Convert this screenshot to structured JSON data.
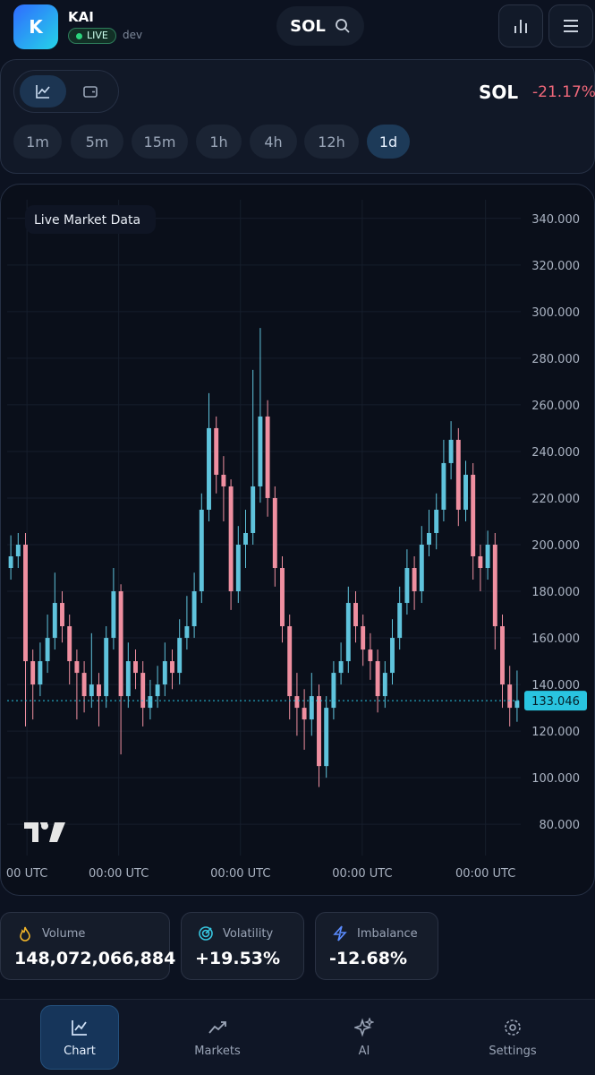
{
  "header": {
    "logo": "K",
    "app_name": "KAI",
    "badge": "LIVE",
    "env": "dev",
    "symbol": "SOL"
  },
  "toolbar": {
    "ticker": "SOL",
    "change": "-21.17%",
    "timeframes": [
      "1m",
      "5m",
      "15m",
      "1h",
      "4h",
      "12h",
      "1d"
    ],
    "active_timeframe": "1d"
  },
  "chart_data": {
    "type": "candlestick",
    "annotation": "Live Market Data",
    "up_color": "#5fc3dc",
    "down_color": "#ef8fa0",
    "last_price_color": "#29c4e0",
    "x": [
      0,
      1,
      2,
      3,
      4,
      5,
      6,
      7,
      8,
      9,
      10,
      11,
      12,
      13,
      14,
      15,
      16,
      17,
      18,
      19,
      20,
      21,
      22,
      23,
      24,
      25,
      26,
      27,
      28,
      29,
      30,
      31,
      32,
      33,
      34,
      35,
      36,
      37,
      38,
      39,
      40,
      41,
      42,
      43,
      44,
      45,
      46,
      47,
      48,
      49,
      50,
      51,
      52,
      53,
      54,
      55,
      56,
      57,
      58,
      59,
      60,
      61,
      62,
      63,
      64,
      65,
      66,
      67,
      68,
      69
    ],
    "open": [
      190,
      195,
      200,
      150,
      140,
      150,
      160,
      175,
      165,
      150,
      145,
      135,
      140,
      135,
      160,
      180,
      135,
      150,
      145,
      130,
      135,
      140,
      150,
      145,
      160,
      165,
      180,
      215,
      250,
      230,
      225,
      180,
      200,
      205,
      225,
      255,
      220,
      190,
      165,
      135,
      130,
      125,
      135,
      105,
      130,
      145,
      150,
      175,
      165,
      155,
      150,
      135,
      145,
      160,
      175,
      190,
      180,
      200,
      205,
      215,
      235,
      245,
      215,
      230,
      195,
      190,
      200,
      165,
      140,
      130
    ],
    "high": [
      204,
      205,
      205,
      155,
      158,
      170,
      188,
      180,
      170,
      155,
      150,
      162,
      145,
      165,
      190,
      183,
      158,
      155,
      150,
      142,
      148,
      158,
      155,
      168,
      178,
      188,
      222,
      265,
      255,
      238,
      228,
      208,
      215,
      275,
      293,
      262,
      225,
      195,
      170,
      145,
      138,
      145,
      140,
      135,
      150,
      158,
      182,
      180,
      170,
      162,
      155,
      150,
      168,
      182,
      198,
      195,
      208,
      215,
      222,
      245,
      253,
      250,
      236,
      235,
      200,
      206,
      205,
      170,
      148,
      146
    ],
    "low": [
      185,
      190,
      122,
      125,
      135,
      145,
      155,
      158,
      140,
      125,
      128,
      130,
      122,
      130,
      155,
      110,
      130,
      138,
      122,
      125,
      130,
      135,
      138,
      140,
      155,
      160,
      175,
      210,
      222,
      210,
      172,
      175,
      190,
      200,
      218,
      212,
      182,
      158,
      125,
      118,
      112,
      118,
      96,
      100,
      125,
      140,
      145,
      158,
      148,
      142,
      128,
      130,
      140,
      155,
      170,
      172,
      175,
      195,
      198,
      210,
      228,
      208,
      210,
      185,
      180,
      185,
      155,
      130,
      122,
      124
    ],
    "close": [
      195,
      200,
      150,
      140,
      150,
      160,
      175,
      165,
      150,
      145,
      135,
      140,
      135,
      160,
      180,
      135,
      150,
      145,
      130,
      135,
      140,
      150,
      145,
      160,
      165,
      180,
      215,
      250,
      230,
      225,
      180,
      200,
      205,
      225,
      255,
      220,
      190,
      165,
      135,
      130,
      125,
      135,
      105,
      130,
      145,
      150,
      175,
      165,
      155,
      150,
      135,
      145,
      160,
      175,
      190,
      180,
      200,
      205,
      215,
      235,
      245,
      215,
      230,
      195,
      190,
      200,
      165,
      140,
      130,
      133
    ],
    "last_price": 133.046,
    "xlim": [
      -0.5,
      69.5
    ],
    "ylim": [
      52,
      348
    ],
    "xticks": [
      {
        "value": 2.2,
        "label": "00 UTC"
      },
      {
        "value": 14.7,
        "label": "00:00 UTC"
      },
      {
        "value": 31.3,
        "label": "00:00 UTC"
      },
      {
        "value": 47.9,
        "label": "00:00 UTC"
      },
      {
        "value": 64.7,
        "label": "00:00 UTC"
      }
    ],
    "yticks": [
      {
        "value": 80,
        "label": "80.000"
      },
      {
        "value": 100,
        "label": "100.000"
      },
      {
        "value": 120,
        "label": "120.000"
      },
      {
        "value": 140,
        "label": "140.000"
      },
      {
        "value": 160,
        "label": "160.000"
      },
      {
        "value": 180,
        "label": "180.000"
      },
      {
        "value": 200,
        "label": "200.000"
      },
      {
        "value": 220,
        "label": "220.000"
      },
      {
        "value": 240,
        "label": "240.000"
      },
      {
        "value": 260,
        "label": "260.000"
      },
      {
        "value": 280,
        "label": "280.000"
      },
      {
        "value": 300,
        "label": "300.000"
      },
      {
        "value": 320,
        "label": "320.000"
      },
      {
        "value": 340,
        "label": "340.000"
      }
    ],
    "grid": true
  },
  "stats": [
    {
      "label": "Volume",
      "value": "148,072,066,884"
    },
    {
      "label": "Volatility",
      "value": "+19.53%"
    },
    {
      "label": "Imbalance",
      "value": "-12.68%"
    }
  ],
  "nav": [
    "Chart",
    "Markets",
    "AI",
    "Settings"
  ]
}
